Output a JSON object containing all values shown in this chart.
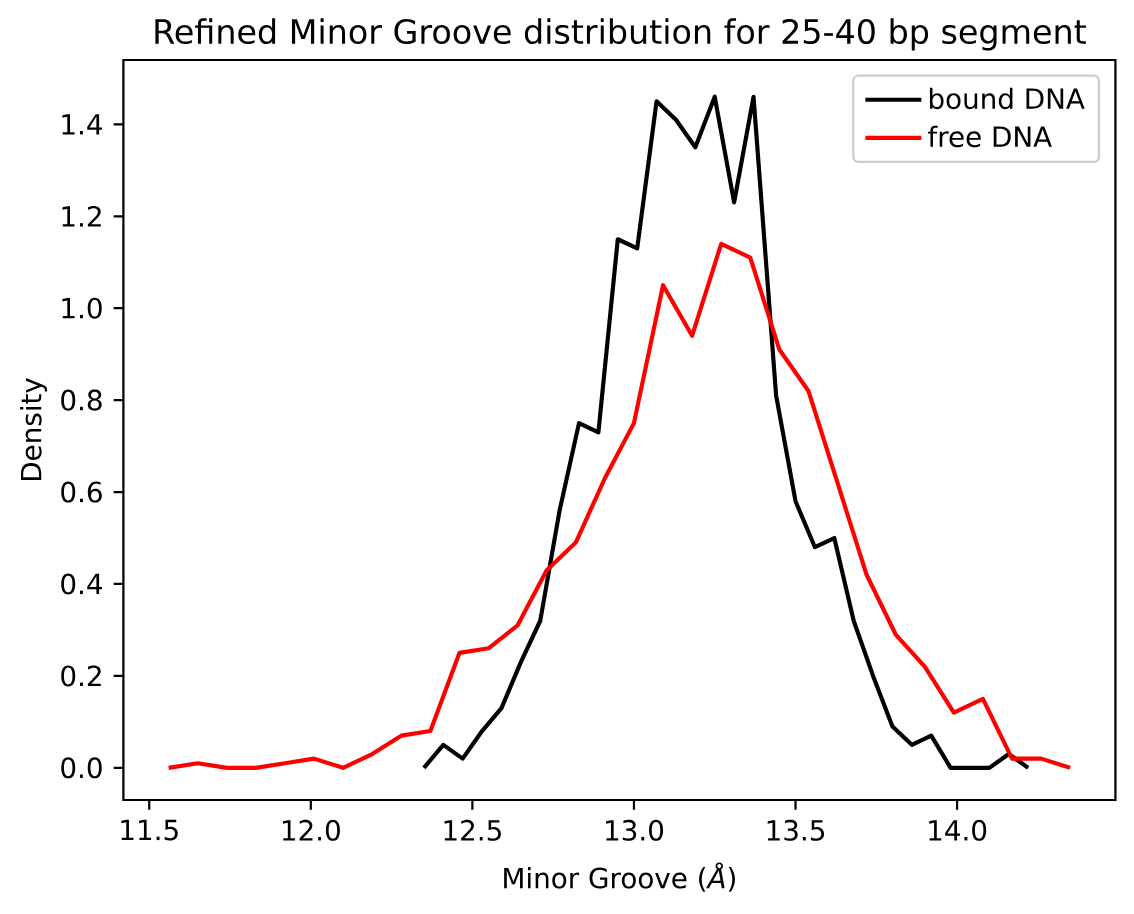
{
  "chart_data": {
    "type": "line",
    "title": "Refined Minor Groove distribution for 25-40 bp segment",
    "xlabel": "Minor Groove (*Å*)",
    "ylabel": "Density",
    "series": [
      {
        "name": "bound DNA",
        "color": "#000000",
        "x": [
          12.35,
          12.41,
          12.47,
          12.53,
          12.59,
          12.65,
          12.71,
          12.77,
          12.83,
          12.89,
          12.95,
          13.01,
          13.07,
          13.13,
          13.19,
          13.25,
          13.31,
          13.37,
          13.44,
          13.5,
          13.56,
          13.62,
          13.68,
          13.74,
          13.8,
          13.86,
          13.92,
          13.98,
          14.04,
          14.1,
          14.16,
          14.22
        ],
        "values": [
          0.0,
          0.05,
          0.02,
          0.08,
          0.13,
          0.23,
          0.32,
          0.56,
          0.75,
          0.73,
          1.15,
          1.13,
          1.45,
          1.41,
          1.35,
          1.46,
          1.23,
          1.46,
          0.81,
          0.58,
          0.48,
          0.5,
          0.32,
          0.2,
          0.09,
          0.05,
          0.07,
          0.0,
          0.0,
          0.0,
          0.03,
          0.0
        ]
      },
      {
        "name": "free DNA",
        "color": "#ff0000",
        "x": [
          11.56,
          11.65,
          11.74,
          11.83,
          11.92,
          12.01,
          12.1,
          12.19,
          12.28,
          12.37,
          12.46,
          12.55,
          12.64,
          12.73,
          12.82,
          12.91,
          13.0,
          13.09,
          13.18,
          13.27,
          13.36,
          13.45,
          13.54,
          13.63,
          13.72,
          13.81,
          13.9,
          13.99,
          14.08,
          14.17,
          14.26,
          14.35
        ],
        "values": [
          0.0,
          0.01,
          0.0,
          0.0,
          0.01,
          0.02,
          0.0,
          0.03,
          0.07,
          0.08,
          0.25,
          0.26,
          0.31,
          0.43,
          0.49,
          0.63,
          0.75,
          1.05,
          0.94,
          1.14,
          1.11,
          0.91,
          0.82,
          0.62,
          0.42,
          0.29,
          0.22,
          0.12,
          0.15,
          0.02,
          0.02,
          0.0
        ]
      }
    ],
    "xlim": [
      11.42,
      14.49
    ],
    "ylim": [
      -0.07,
      1.54
    ],
    "xticks": [
      11.5,
      {
        "value": 12,
        "label": "12.0"
      },
      12.5,
      {
        "value": 13,
        "label": "13.0"
      },
      13.5,
      {
        "value": 14,
        "label": "14.0"
      }
    ],
    "yticks": [
      {
        "value": 0,
        "label": "0.0"
      },
      0.2,
      0.4,
      0.6,
      0.8,
      {
        "value": 1,
        "label": "1.0"
      },
      1.2,
      1.4
    ],
    "legend": "top right"
  }
}
